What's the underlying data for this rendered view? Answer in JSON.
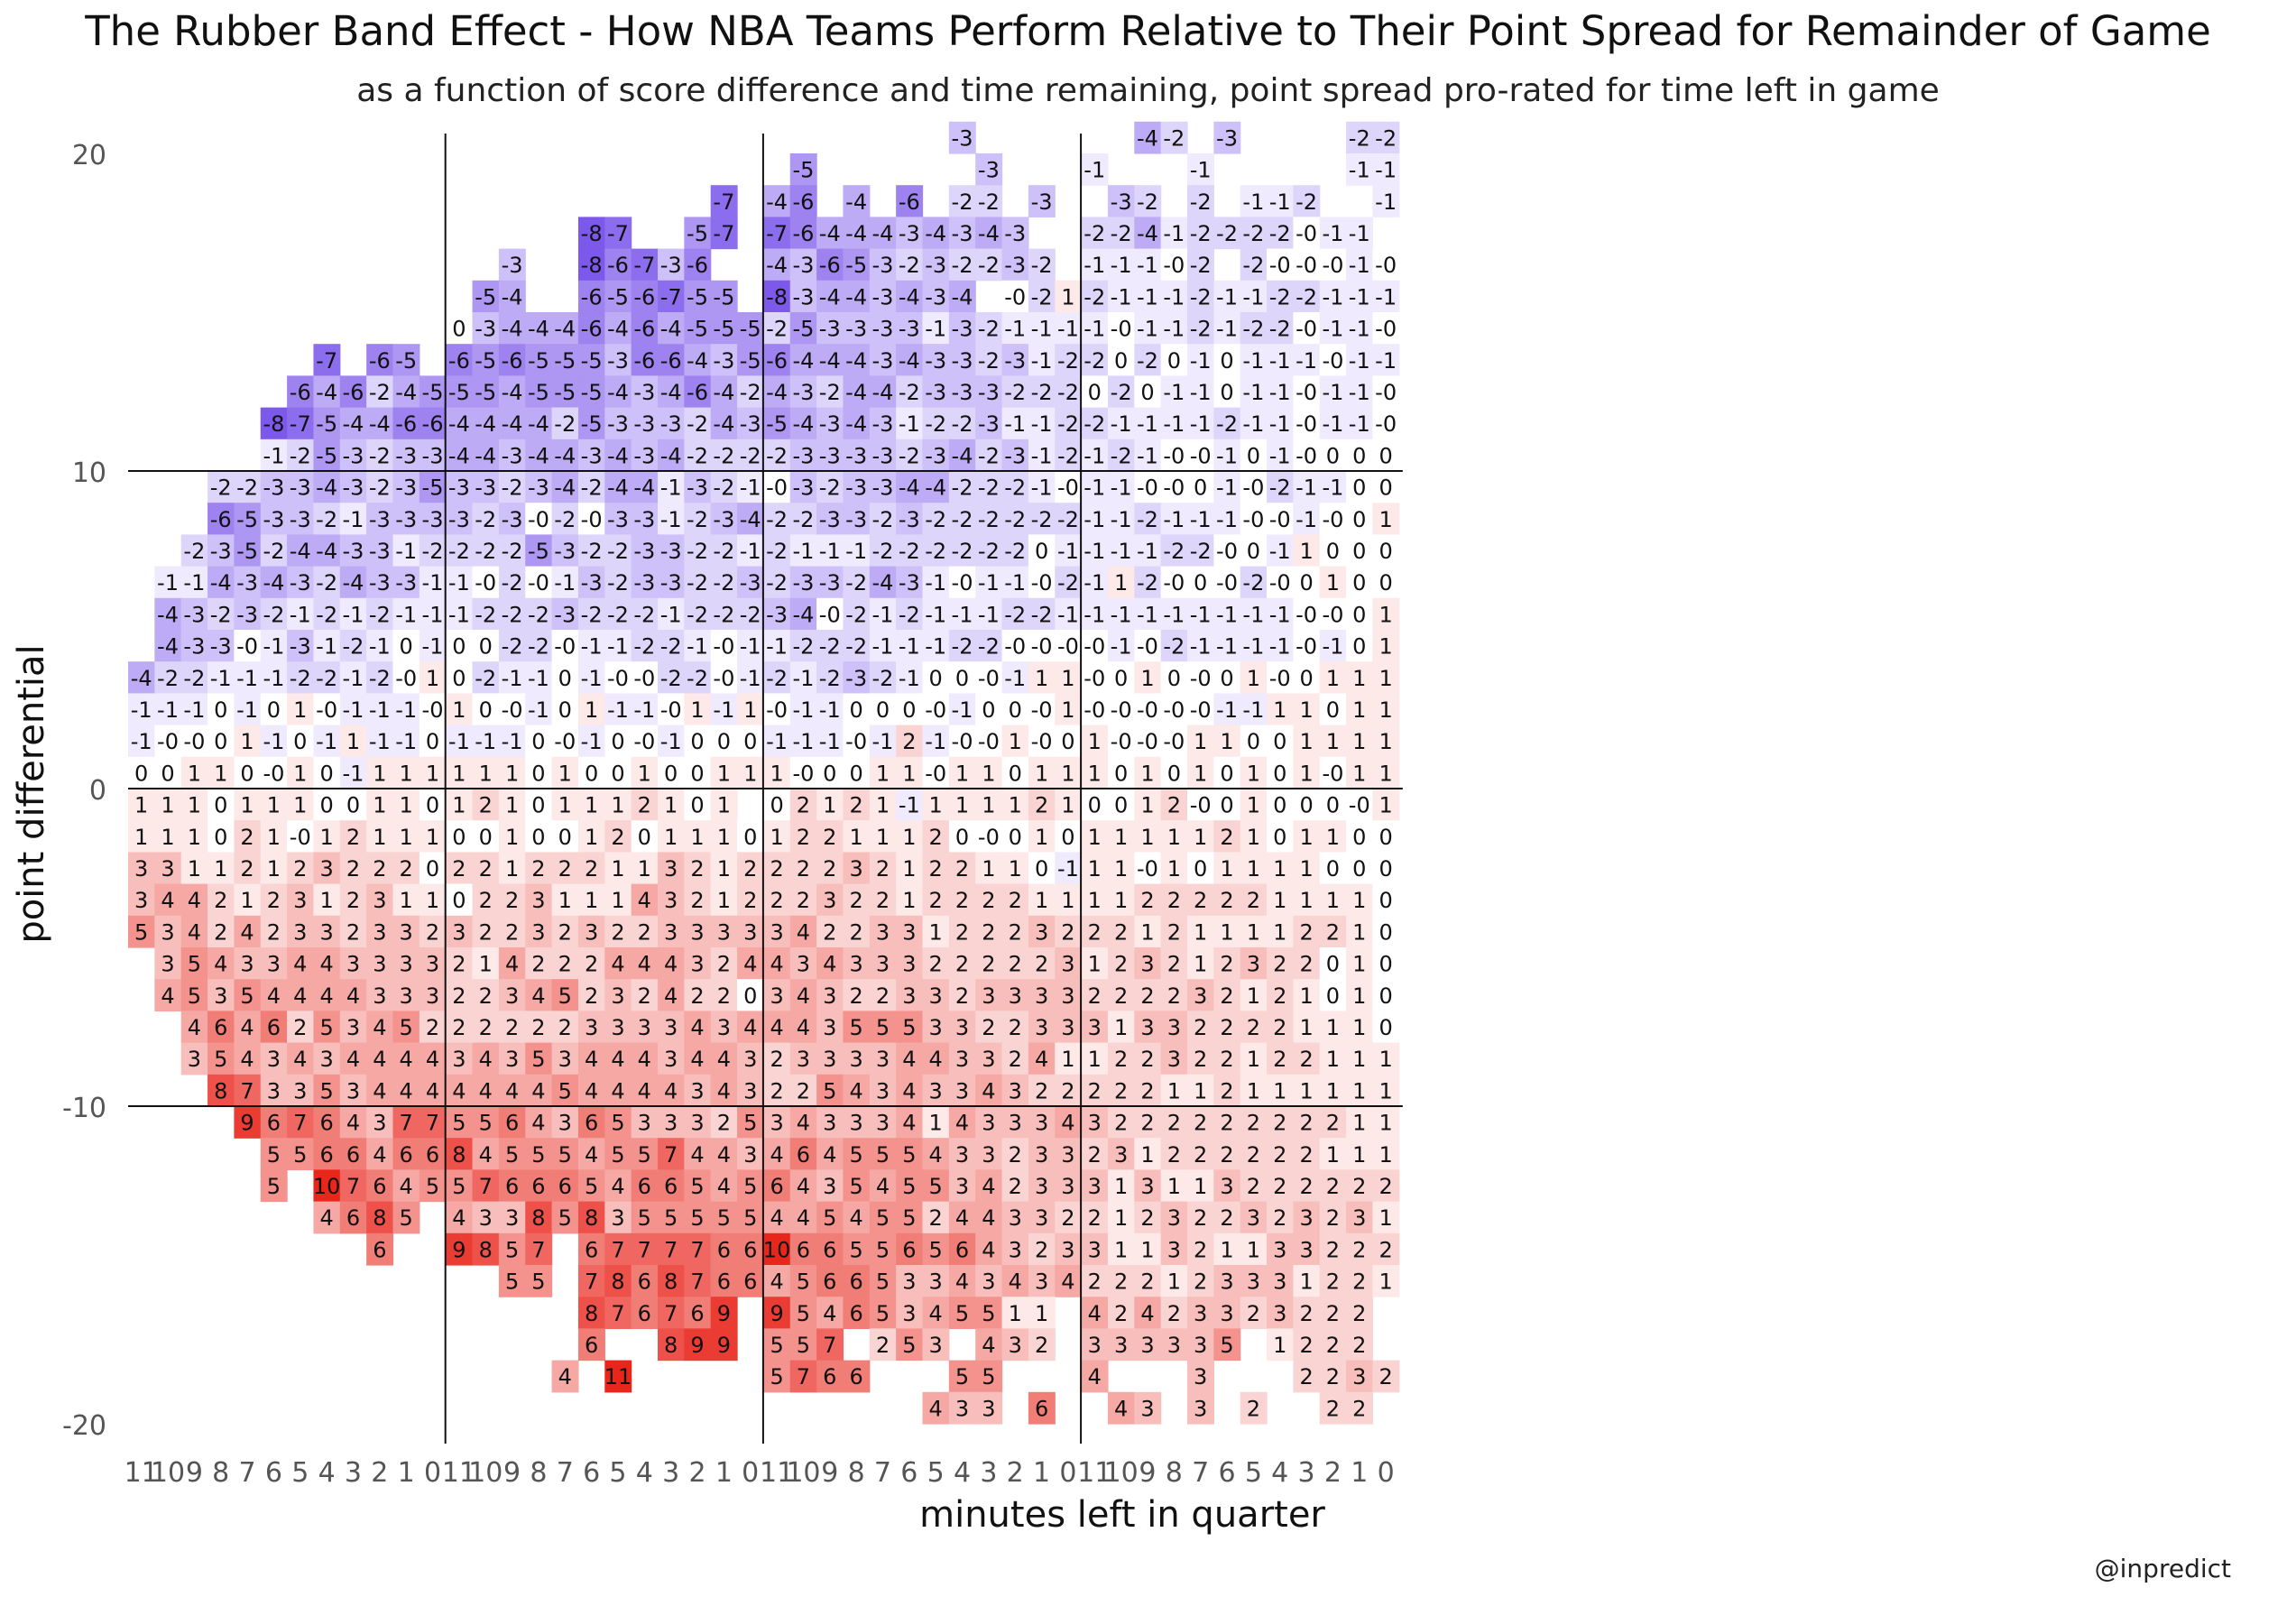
{
  "chart_data": {
    "type": "heatmap",
    "title": "The Rubber Band Effect - How NBA Teams Perform Relative to Their Point Spread for Remainder of Game",
    "subtitle": "as a function of score difference and time remaining, point spread pro-rated for time left in game",
    "xlabel": "minutes left in quarter",
    "ylabel": "point differential",
    "credit": "@inpredict",
    "x_tick_labels": [
      "11",
      "10",
      "9",
      "8",
      "7",
      "6",
      "5",
      "4",
      "3",
      "2",
      "1",
      "0"
    ],
    "quarters": 4,
    "y_ticks": [
      20,
      10,
      0,
      -10,
      -20
    ],
    "y_tick_labels": [
      "20",
      "10",
      "0",
      "-10",
      "-20"
    ],
    "ylim": [
      -20,
      20
    ],
    "color_scale": {
      "negative": "#5b2ee6",
      "positive": "#e8261c",
      "zero": "#ffffff",
      "max_abs": 10
    },
    "grid_lines_y": [
      10,
      0,
      -10
    ],
    "quarter_separators": true,
    "rows_by_point_differential": [
      {
        "y": 20,
        "q1": "",
        "q2": "",
        "q3": ",,,,,,,-3,,,,",
        "q4": ",,-4,-2,,-3,,,,,-2,-2"
      },
      {
        "y": 19,
        "q1": "",
        "q2": "",
        "q3": ",-5,,,,,,,-3,,,",
        "q4": "-1,,,,-1,,,,,,-1,-1"
      },
      {
        "y": 18,
        "q1": "",
        "q2": ",,,,,,,,,,-7,",
        "q3": "-4,-6,,-4,,-6,,-2,-2,,-3,",
        "q4": ",-3,-2,,-2,,-1,-1,-2,,,-1"
      },
      {
        "y": 17,
        "q1": "",
        "q2": ",,,,,-8,-7,,,-5,-7,",
        "q3": "-7,-6,-4,-4,-4,-3,-4,-3,-4,-3,,",
        "q4": "-2,-2,-4,-1,-2,-2,-2,-2,-0,-1,-1,"
      },
      {
        "y": 16,
        "q1": "",
        "q2": ",,-3,,,-8,-6,-7,-3,-6,,",
        "q3": "-4,-3,-6,-5,-3,-2,-3,-2,-2,-3,-2,",
        "q4": "-1,-1,-1,-0,-2,,-2,-0,-0,-0,-1,-0"
      },
      {
        "y": 15,
        "q1": "",
        "q2": ",-5,-4,,,-6,-5,-6,-7,-5,-5,",
        "q3": "-8,-3,-4,-4,-3,-4,-3,-4,,-0,-2,1",
        "q4": "-2,-1,-1,-1,-2,-1,-1,-2,-2,-1,-1,-1"
      },
      {
        "y": 14,
        "q1": "",
        "q2": "0,-3,-4,-4,-4,-6,-4,-6,-4,-5,-5,-5",
        "q3": "-2,-5,-3,-3,-3,-3,-1,-3,-2,-1,-1,-1",
        "q4": "-1,-0,-1,-1,-2,-1,-2,-2,-0,-1,-1,-0"
      },
      {
        "y": 13,
        "q1": ",,,,,,,-7,,-6,-5,",
        "q2": "-6,-5,-6,-5,-5,-5,-3,-6,-6,-4,-3,-5",
        "q3": "-6,-4,-4,-4,-3,-4,-3,-3,-2,-3,-1,-2",
        "q4": "-2,0,-2,0,-1,0,-1,-1,-1,-0,-1,-1"
      },
      {
        "y": 12,
        "q1": ",,,,,,-6,-4,-6,-2,-4,-5",
        "q2": "-5,-5,-4,-5,-5,-5,-4,-3,-4,-6,-4,-2",
        "q3": "-4,-3,-2,-4,-4,-2,-3,-3,-3,-2,-2,-2",
        "q4": "0,-2,0,-1,-1,0,-1,-1,-0,-1,-1,-0"
      },
      {
        "y": 11,
        "q1": ",,,,,-8,-7,-5,-4,-4,-6,-6",
        "q2": "-4,-4,-4,-4,-2,-5,-3,-3,-3,-2,-4,-3",
        "q3": "-5,-4,-3,-4,-3,-1,-2,-2,-3,-1,-1,-2",
        "q4": "-2,-1,-1,-1,-1,-2,-1,-1,-0,-1,-1,-0"
      },
      {
        "y": 10,
        "q1": ",,,,,-1,-2,-5,-3,-2,-3,-3",
        "q2": "-4,-4,-3,-4,-4,-3,-4,-3,-4,-2,-2,-2",
        "q3": "-2,-3,-3,-3,-3,-2,-3,-4,-2,-3,-1,-2",
        "q4": "-1,-2,-1,-0,-0,-1,0,-1,-0,0,0,0"
      },
      {
        "y": 9,
        "q1": ",,,-2,-2,-3,-3,-4,-3,-2,-3,-5",
        "q2": "-3,-3,-2,-3,-4,-2,-4,-4,-1,-3,-2,-1",
        "q3": "-0,-3,-2,-3,-3,-4,-4,-2,-2,-2,-1,-0",
        "q4": "-1,-1,-0,-0,0,-1,-0,-2,-1,-1,0,0"
      },
      {
        "y": 8,
        "q1": ",,,-6,-5,-3,-3,-2,-1,-3,-3,-3",
        "q2": "-3,-2,-3,-0,-2,-0,-3,-3,-1,-2,-3,-4",
        "q3": "-2,-2,-3,-3,-2,-3,-2,-2,-2,-2,-2,-2",
        "q4": "-1,-1,-2,-1,-1,-1,-0,-0,-1,-0,0,1"
      },
      {
        "y": 7,
        "q1": ",,-2,-3,-5,-2,-4,-4,-3,-3,-1,-2",
        "q2": "-2,-2,-2,-5,-3,-2,-2,-3,-3,-2,-2,-1",
        "q3": "-2,-1,-1,-1,-2,-2,-2,-2,-2,-2,0,-1",
        "q4": "-1,-1,-1,-2,-2,-0,0,-1,1,0,0,0"
      },
      {
        "y": 6,
        "q1": ",-1,-1,-4,-3,-4,-3,-2,-4,-3,-3,-1",
        "q2": "-1,-0,-2,-0,-1,-3,-2,-3,-3,-2,-2,-3",
        "q3": "-2,-3,-3,-2,-4,-3,-1,-0,-1,-1,-0,-2",
        "q4": "-1,1,-2,-0,0,-0,-2,-0,0,1,0,0"
      },
      {
        "y": 5,
        "q1": ",-4,-3,-2,-3,-2,-1,-2,-1,-2,-1,-1",
        "q2": "-1,-2,-2,-2,-3,-2,-2,-2,-1,-2,-2,-2",
        "q3": "-3,-4,-0,-2,-1,-2,-1,-1,-1,-2,-2,-1",
        "q4": "-1,-1,-1,-1,-1,-1,-1,-1,-0,-0,0,1"
      },
      {
        "y": 4,
        "q1": ",-4,-3,-3,-0,-1,-3,-1,-2,-1,0,-1",
        "q2": "0,0,-2,-2,-0,-1,-1,-2,-2,-1,-0,-1",
        "q3": "-1,-2,-2,-2,-1,-1,-1,-2,-2,-0,-0,-0",
        "q4": "-0,-1,-0,-2,-1,-1,-1,-1,-0,-1,0,1"
      },
      {
        "y": 3,
        "q1": "-4,-2,-2,-1,-1,-1,-2,-2,-1,-2,-0,1",
        "q2": "0,-2,-1,-1,0,-1,-0,-0,-2,-2,-0,-1",
        "q3": "-2,-1,-2,-3,-2,-1,0,0,-0,-1,1,1",
        "q4": "-0,0,1,0,-0,0,1,-0,0,1,1,1"
      },
      {
        "y": 2,
        "q1": "-1,-1,-1,0,-1,0,1,-0,-1,-1,-1,-0",
        "q2": "1,0,-0,-1,0,1,-1,-1,-0,1,-1,1",
        "q3": "-0,-1,-1,0,0,0,-0,-1,0,0,-0,1",
        "q4": "-0,-0,-0,-0,-0,-1,-1,1,1,0,1,1"
      },
      {
        "y": 1,
        "q1": "-1,-0,-0,0,1,-1,0,-1,1,-1,-1,0",
        "q2": "-1,-1,-1,0,-0,-1,0,-0,-1,0,0,0",
        "q3": "-1,-1,-1,-0,-1,2,-1,-0,-0,1,-0,0",
        "q4": "1,-0,-0,-0,1,1,0,0,1,1,1,1"
      },
      {
        "y": 0,
        "q1": "0,0,1,1,0,-0,1,0,-1,1,1,1",
        "q2": "1,1,1,0,1,0,0,1,0,0,1,1",
        "q3": "1,-0,0,0,1,1,-0,1,1,0,1,1",
        "q4": "1,0,1,0,1,0,1,0,1,-0,1,1"
      },
      {
        "y": -1,
        "q1": "1,1,1,0,1,1,1,0,0,1,1,0",
        "q2": "1,2,1,0,1,1,1,2,1,0,1,",
        "q3": "0,2,1,2,1,-1,1,1,1,1,2,1",
        "q4": "0,0,1,2,-0,0,1,0,0,0,-0,1"
      },
      {
        "y": -2,
        "q1": "1,1,1,0,2,1,-0,1,2,1,1,1",
        "q2": "0,0,1,0,0,1,2,0,1,1,1,0",
        "q3": "1,2,2,1,1,1,2,0,-0,0,1,0",
        "q4": "1,1,1,1,1,2,1,0,1,1,0,0"
      },
      {
        "y": -3,
        "q1": "3,3,1,1,2,1,2,3,2,2,2,0",
        "q2": "2,2,1,2,2,2,1,1,3,2,1,2",
        "q3": "2,2,2,3,2,1,2,2,1,1,0,-1",
        "q4": "1,1,-0,1,0,1,1,1,1,0,0,0"
      },
      {
        "y": -4,
        "q1": "3,4,4,2,1,2,3,1,2,3,1,1",
        "q2": "0,2,2,3,1,1,1,4,3,2,1,2",
        "q3": "2,2,3,2,2,1,2,2,2,2,1,1",
        "q4": "1,1,2,2,2,2,2,1,1,1,1,0"
      },
      {
        "y": -5,
        "q1": "5,3,4,2,4,2,3,3,2,3,3,2",
        "q2": "3,2,2,3,2,3,2,2,3,3,3,3",
        "q3": "3,4,2,2,3,3,1,2,2,2,3,2",
        "q4": "2,2,1,2,1,1,1,1,2,2,1,0"
      },
      {
        "y": -6,
        "q1": ",3,5,4,3,3,4,4,3,3,3,3",
        "q2": "2,1,4,2,2,2,4,4,4,3,2,4",
        "q3": "4,3,4,3,3,3,2,2,2,2,2,3",
        "q4": "1,2,3,2,1,2,3,2,2,0,1,0"
      },
      {
        "y": -7,
        "q1": ",4,5,3,5,4,4,4,4,3,3,3",
        "q2": "2,2,3,4,5,2,3,2,4,2,2,0",
        "q3": "3,4,3,2,2,3,3,2,3,3,3,3",
        "q4": "2,2,2,2,3,2,1,2,1,0,1,0"
      },
      {
        "y": -8,
        "q1": ",,4,6,4,6,2,5,3,4,5,2",
        "q2": "2,2,2,2,2,3,3,3,3,4,3,4",
        "q3": "4,4,3,5,5,5,3,3,2,2,3,3",
        "q4": "3,1,3,3,2,2,2,2,1,1,1,0"
      },
      {
        "y": -9,
        "q1": ",,3,5,4,3,4,3,4,4,4,4",
        "q2": "3,4,3,5,3,4,4,4,3,4,4,3",
        "q3": "2,3,3,3,3,4,4,3,3,2,4,1",
        "q4": "1,2,2,3,2,2,1,2,2,1,1,1"
      },
      {
        "y": -10,
        "q1": ",,,8,7,3,3,5,3,4,4,4",
        "q2": "4,4,4,4,5,4,4,4,4,3,4,3",
        "q3": "2,2,5,4,3,4,3,3,4,3,2,2",
        "q4": "2,2,2,1,1,2,1,1,1,1,1,1"
      },
      {
        "y": -11,
        "q1": ",,,,9,6,7,6,4,3,7,7",
        "q2": "5,5,6,4,3,6,5,3,3,3,2,5",
        "q3": "3,4,3,3,3,4,1,4,3,3,3,4",
        "q4": "3,2,2,2,2,2,2,2,2,2,1,1"
      },
      {
        "y": -12,
        "q1": ",,,,,5,5,6,6,4,6,6",
        "q2": "8,4,5,5,5,4,5,5,7,4,4,3",
        "q3": "4,6,4,5,5,5,4,3,3,2,3,3",
        "q4": "2,3,1,2,2,2,2,2,2,1,1,1"
      },
      {
        "y": -13,
        "q1": ",,,,,5,,10,7,6,4,5",
        "q2": "5,7,6,6,6,5,4,6,6,5,4,5",
        "q3": "6,4,3,5,4,5,5,3,4,2,3,3",
        "q4": "3,1,3,1,1,3,2,2,2,2,2,2"
      },
      {
        "y": -14,
        "q1": ",,,,,,,4,6,8,5,",
        "q2": "4,3,3,8,5,8,3,5,5,5,5,5",
        "q3": "4,4,5,4,5,5,2,4,4,3,3,2",
        "q4": "2,1,2,3,2,2,3,2,3,2,3,1"
      },
      {
        "y": -15,
        "q1": ",,,,,,,,,6,,",
        "q2": "9,8,5,7,,6,7,7,7,7,6,6",
        "q3": "10,6,6,5,5,6,5,6,4,3,2,3",
        "q4": "3,1,1,3,2,1,1,3,3,2,2,2"
      },
      {
        "y": -16,
        "q1": "",
        "q2": ",,5,5,,7,8,6,8,7,6,6",
        "q3": "4,5,6,6,5,3,3,4,3,4,3,4",
        "q4": "2,2,2,1,2,3,3,3,1,2,2,1"
      },
      {
        "y": -17,
        "q1": "",
        "q2": ",,,,,8,7,6,7,6,9,",
        "q3": "9,5,4,6,5,3,4,5,5,1,1,",
        "q4": "4,2,4,2,3,3,2,3,2,2,2,"
      },
      {
        "y": -18,
        "q1": "",
        "q2": ",,,,,6,,,8,9,9,",
        "q3": "5,5,7,,2,5,3,,4,3,2,",
        "q4": "3,3,3,3,3,5,,1,2,2,2,"
      },
      {
        "y": -19,
        "q1": "",
        "q2": ",,,,4,,11,,,,,",
        "q3": "5,7,6,6,,,,5,5,,,",
        "q4": "4,,,,3,,,,2,2,3,2"
      },
      {
        "y": -20,
        "q1": "",
        "q2": "",
        "q3": ",,,,,,4,3,3,,6,",
        "q4": ",4,3,,3,,2,,,2,2,"
      }
    ]
  }
}
